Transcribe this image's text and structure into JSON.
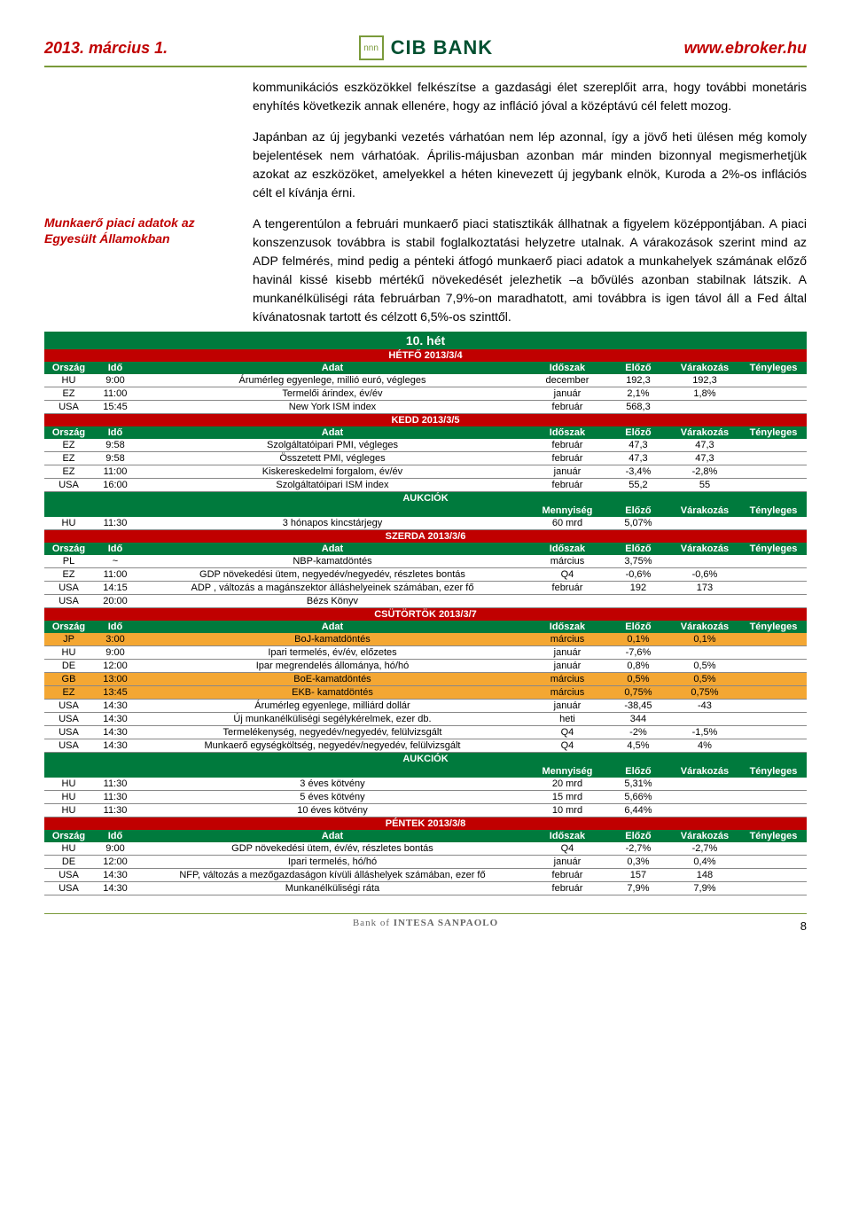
{
  "header": {
    "date": "2013. március 1.",
    "url": "www.ebroker.hu",
    "logo_text": "CIB BANK"
  },
  "para1": "kommunikációs eszközökkel felkészítse a gazdasági élet szereplőit arra, hogy további monetáris enyhítés következik annak ellenére, hogy az infláció jóval a középtávú cél felett mozog.",
  "para2": "Japánban az új jegybanki vezetés várhatóan nem lép azonnal, így a jövő heti ülésen még komoly bejelentések nem várhatóak. Április-májusban azonban már minden bizonnyal megismerhetjük azokat az eszközöket, amelyekkel a héten kinevezett új jegybank elnök, Kuroda a 2%-os inflációs célt el kívánja érni.",
  "side_label": "Munkaerő piaci adatok az Egyesült Államokban",
  "para3": "A tengerentúlon a februári munkaerő piaci statisztikák állhatnak a figyelem középpontjában. A piaci konszenzusok továbbra is stabil foglalkoztatási helyzetre utalnak. A várakozások szerint mind az ADP felmérés, mind pedig a pénteki átfogó munkaerő piaci adatok a munkahelyek számának előző havinál kissé kisebb mértékű növekedését jelezhetik –a bővülés azonban stabilnak látszik. A munkanélküliségi ráta februárban 7,9%-on maradhatott, ami továbbra is igen távol áll a Fed által kívánatosnak tartott és célzott 6,5%-os szinttől.",
  "week_label": "10. hét",
  "col_labels": {
    "orszag": "Ország",
    "ido": "Idő",
    "adat": "Adat",
    "idoszak": "Időszak",
    "elozo": "Előző",
    "varakozas": "Várakozás",
    "tenyleges": "Tényleges",
    "mennyiseg": "Mennyiség",
    "aukciok": "AUKCIÓK"
  },
  "days": {
    "hetfo": "HÉTFŐ 2013/3/4",
    "kedd": "KEDD 2013/3/5",
    "szerda": "SZERDA 2013/3/6",
    "csutortok": "CSÜTÖRTÖK 2013/3/7",
    "pentek": "PÉNTEK 2013/3/8"
  },
  "rows": {
    "h1": [
      "HU",
      "9:00",
      "Árumérleg egyenlege, millió euró, végleges",
      "december",
      "192,3",
      "192,3",
      ""
    ],
    "h2": [
      "EZ",
      "11:00",
      "Termelői árindex, év/év",
      "január",
      "2,1%",
      "1,8%",
      ""
    ],
    "h3": [
      "USA",
      "15:45",
      "New York ISM index",
      "február",
      "568,3",
      "",
      ""
    ],
    "k1": [
      "EZ",
      "9:58",
      "Szolgáltatóipari PMI, végleges",
      "február",
      "47,3",
      "47,3",
      ""
    ],
    "k2": [
      "EZ",
      "9:58",
      "Összetett PMI, végleges",
      "február",
      "47,3",
      "47,3",
      ""
    ],
    "k3": [
      "EZ",
      "11:00",
      "Kiskereskedelmi forgalom, év/év",
      "január",
      "-3,4%",
      "-2,8%",
      ""
    ],
    "k4": [
      "USA",
      "16:00",
      "Szolgáltatóipari ISM index",
      "február",
      "55,2",
      "55",
      ""
    ],
    "ka1": [
      "HU",
      "11:30",
      "3 hónapos kincstárjegy",
      "60 mrd",
      "5,07%",
      "",
      ""
    ],
    "s1": [
      "PL",
      "~",
      "NBP-kamatdöntés",
      "március",
      "3,75%",
      "",
      ""
    ],
    "s2": [
      "EZ",
      "11:00",
      "GDP növekedési ütem, negyedév/negyedév, részletes bontás",
      "Q4",
      "-0,6%",
      "-0,6%",
      ""
    ],
    "s3": [
      "USA",
      "14:15",
      "ADP , változás a magánszektor álláshelyeinek számában, ezer fő",
      "február",
      "192",
      "173",
      ""
    ],
    "s4": [
      "USA",
      "20:00",
      "Bézs Könyv",
      "",
      "",
      "",
      ""
    ],
    "c1": [
      "JP",
      "3:00",
      "BoJ-kamatdöntés",
      "március",
      "0,1%",
      "0,1%",
      ""
    ],
    "c2": [
      "HU",
      "9:00",
      "Ipari termelés, év/év, előzetes",
      "január",
      "-7,6%",
      "",
      ""
    ],
    "c3": [
      "DE",
      "12:00",
      "Ipar megrendelés állománya, hó/hó",
      "január",
      "0,8%",
      "0,5%",
      ""
    ],
    "c4": [
      "GB",
      "13:00",
      "BoE-kamatdöntés",
      "március",
      "0,5%",
      "0,5%",
      ""
    ],
    "c5": [
      "EZ",
      "13:45",
      "EKB- kamatdöntés",
      "március",
      "0,75%",
      "0,75%",
      ""
    ],
    "c6": [
      "USA",
      "14:30",
      "Árumérleg egyenlege, milliárd dollár",
      "január",
      "-38,45",
      "-43",
      ""
    ],
    "c7": [
      "USA",
      "14:30",
      "Új munkanélküliségi segélykérelmek, ezer db.",
      "heti",
      "344",
      "",
      ""
    ],
    "c8": [
      "USA",
      "14:30",
      "Termelékenység, negyedév/negyedév, felülvizsgált",
      "Q4",
      "-2%",
      "-1,5%",
      ""
    ],
    "c9": [
      "USA",
      "14:30",
      "Munkaerő egységköltség, negyedév/negyedév, felülvizsgált",
      "Q4",
      "4,5%",
      "4%",
      ""
    ],
    "ca1": [
      "HU",
      "11:30",
      "3 éves kötvény",
      "20 mrd",
      "5,31%",
      "",
      ""
    ],
    "ca2": [
      "HU",
      "11:30",
      "5 éves kötvény",
      "15 mrd",
      "5,66%",
      "",
      ""
    ],
    "ca3": [
      "HU",
      "11:30",
      "10 éves kötvény",
      "10 mrd",
      "6,44%",
      "",
      ""
    ],
    "p1": [
      "HU",
      "9:00",
      "GDP növekedési ütem, év/év, részletes bontás",
      "Q4",
      "-2,7%",
      "-2,7%",
      ""
    ],
    "p2": [
      "DE",
      "12:00",
      "Ipari termelés, hó/hó",
      "január",
      "0,3%",
      "0,4%",
      ""
    ],
    "p3": [
      "USA",
      "14:30",
      "NFP, változás a mezőgazdaságon kívüli álláshelyek számában, ezer fő",
      "február",
      "157",
      "148",
      ""
    ],
    "p4": [
      "USA",
      "14:30",
      "Munkanélküliségi ráta",
      "február",
      "7,9%",
      "7,9%",
      ""
    ]
  },
  "footer": {
    "bank_of": "Bank of",
    "brand": "INTESA SANPAOLO",
    "page": "8"
  },
  "colors": {
    "red": "#c00000",
    "green_dark": "#007a3d",
    "green_border": "#7a9a3a",
    "orange": "#f4a733",
    "text": "#000000",
    "bg": "#ffffff"
  }
}
